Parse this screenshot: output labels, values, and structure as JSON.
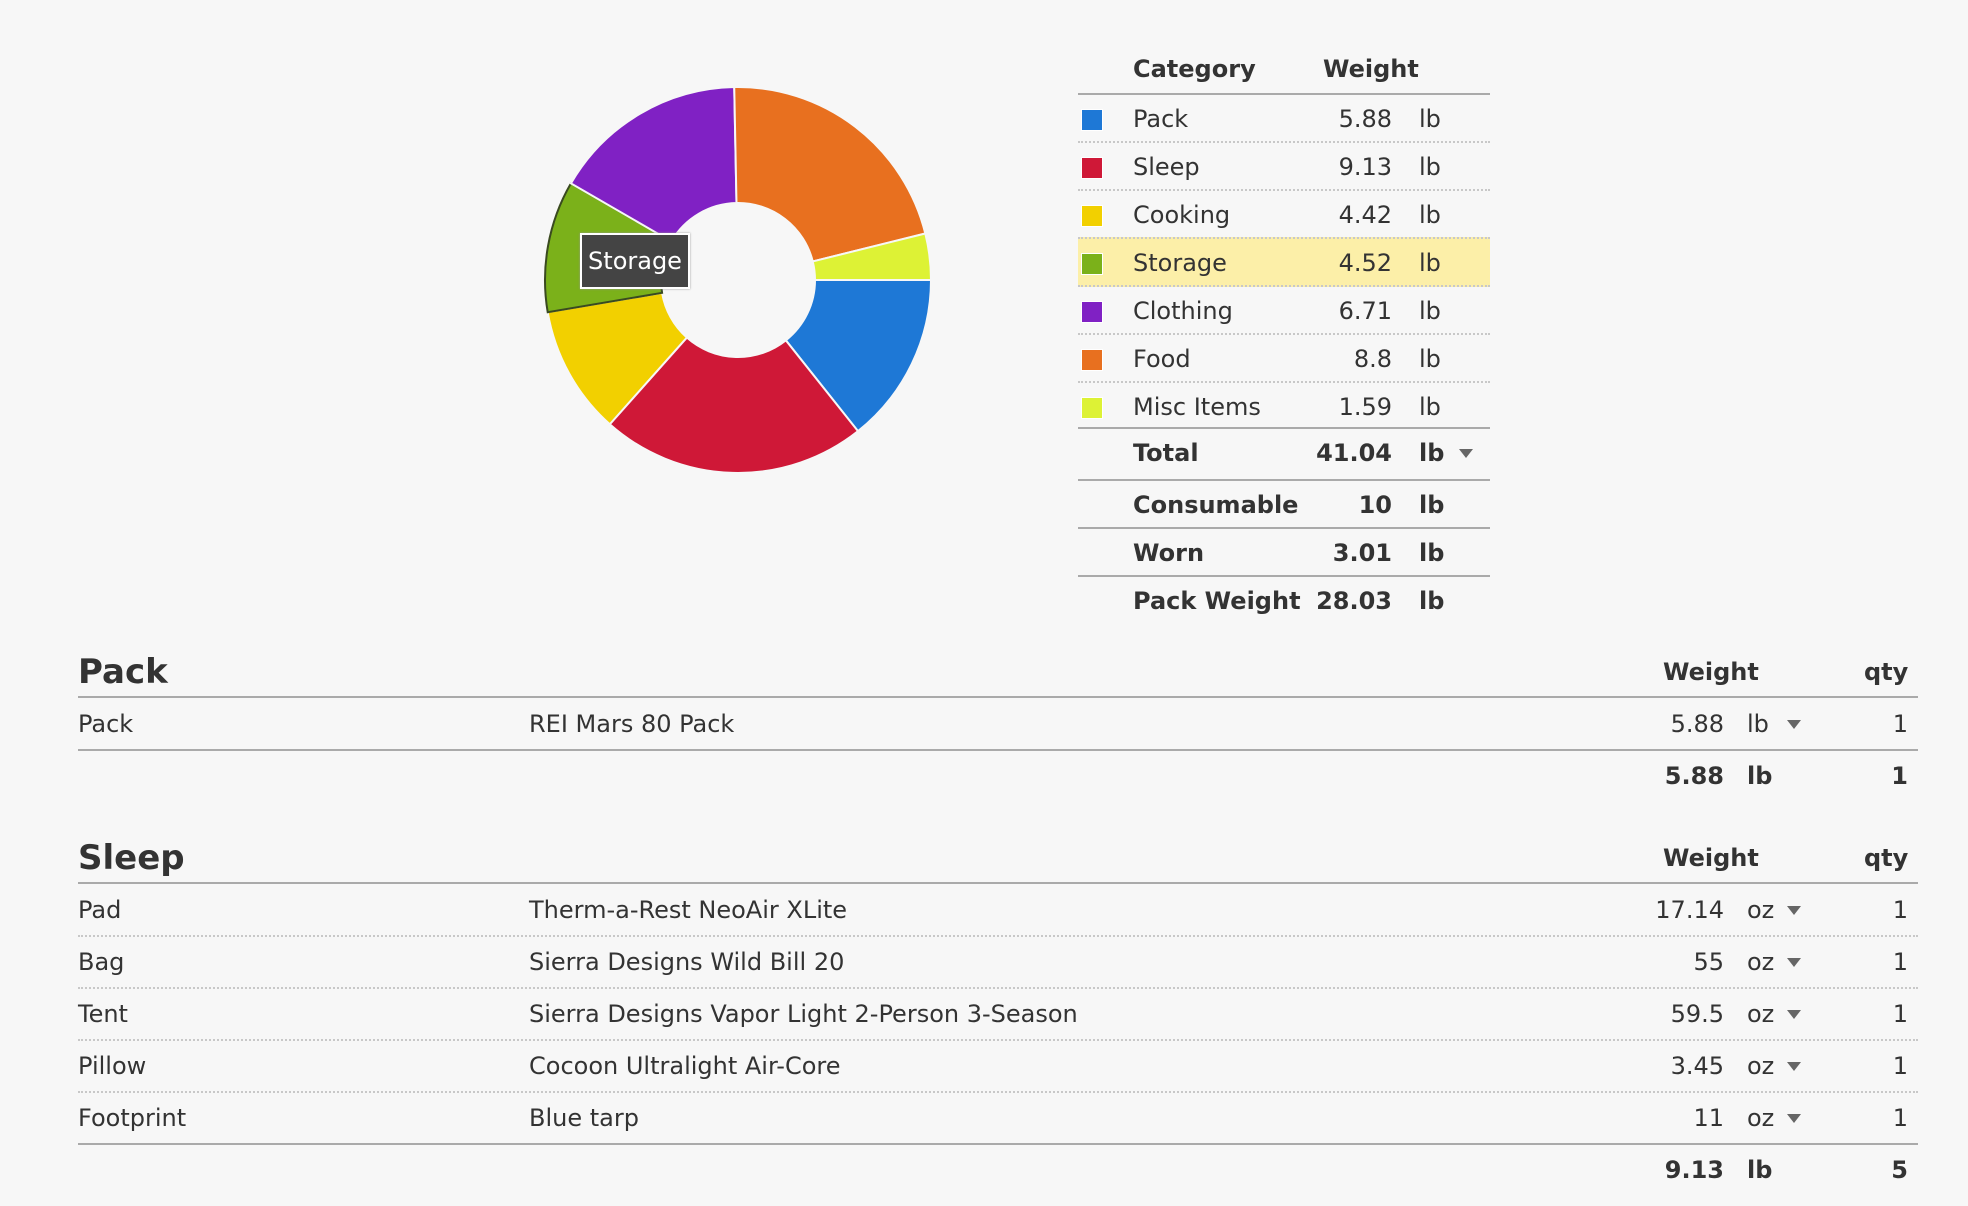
{
  "chart_data": {
    "type": "pie",
    "variant": "donut",
    "start_angle": "3 o'clock, clockwise",
    "categories": [
      "Pack",
      "Sleep",
      "Cooking",
      "Storage",
      "Clothing",
      "Food",
      "Misc Items"
    ],
    "values": [
      5.88,
      9.13,
      4.42,
      4.52,
      6.71,
      8.8,
      1.59
    ],
    "colors": [
      "#1e78d6",
      "#cf1837",
      "#f2d000",
      "#7bb11a",
      "#8021c4",
      "#e8701f",
      "#ddf235"
    ],
    "highlighted": "Storage",
    "tooltip": "Storage"
  },
  "summary": {
    "header": {
      "category": "Category",
      "weight": "Weight"
    },
    "rows": [
      {
        "label": "Pack",
        "weight": "5.88",
        "unit": "lb"
      },
      {
        "label": "Sleep",
        "weight": "9.13",
        "unit": "lb"
      },
      {
        "label": "Cooking",
        "weight": "4.42",
        "unit": "lb"
      },
      {
        "label": "Storage",
        "weight": "4.52",
        "unit": "lb"
      },
      {
        "label": "Clothing",
        "weight": "6.71",
        "unit": "lb"
      },
      {
        "label": "Food",
        "weight": "8.8",
        "unit": "lb"
      },
      {
        "label": "Misc Items",
        "weight": "1.59",
        "unit": "lb"
      }
    ],
    "total": {
      "label": "Total",
      "weight": "41.04",
      "unit": "lb"
    },
    "consumable": {
      "label": "Consumable",
      "weight": "10",
      "unit": "lb"
    },
    "worn": {
      "label": "Worn",
      "weight": "3.01",
      "unit": "lb"
    },
    "pack_weight": {
      "label": "Pack Weight",
      "weight": "28.03",
      "unit": "lb"
    }
  },
  "sections": [
    {
      "title": "Pack",
      "weight_header": "Weight",
      "qty_header": "qty",
      "items": [
        {
          "name": "Pack",
          "description": "REI Mars 80 Pack",
          "weight": "5.88",
          "unit": "lb",
          "qty": "1"
        }
      ],
      "total": {
        "weight": "5.88",
        "unit": "lb",
        "qty": "1"
      }
    },
    {
      "title": "Sleep",
      "weight_header": "Weight",
      "qty_header": "qty",
      "items": [
        {
          "name": "Pad",
          "description": "Therm-a-Rest NeoAir XLite",
          "weight": "17.14",
          "unit": "oz",
          "qty": "1"
        },
        {
          "name": "Bag",
          "description": "Sierra Designs Wild Bill 20",
          "weight": "55",
          "unit": "oz",
          "qty": "1"
        },
        {
          "name": "Tent",
          "description": "Sierra Designs Vapor Light 2-Person 3-Season",
          "weight": "59.5",
          "unit": "oz",
          "qty": "1"
        },
        {
          "name": "Pillow",
          "description": "Cocoon Ultralight Air-Core",
          "weight": "3.45",
          "unit": "oz",
          "qty": "1"
        },
        {
          "name": "Footprint",
          "description": "Blue tarp",
          "weight": "11",
          "unit": "oz",
          "qty": "1"
        }
      ],
      "total": {
        "weight": "9.13",
        "unit": "lb",
        "qty": "5"
      }
    }
  ]
}
